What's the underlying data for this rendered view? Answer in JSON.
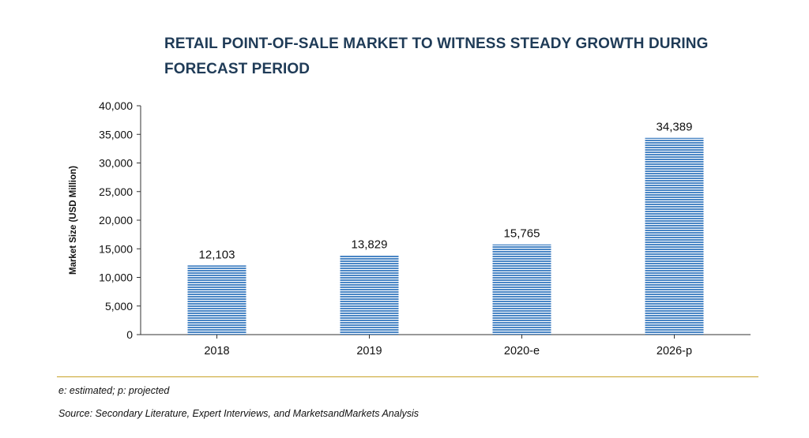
{
  "title_lines": [
    "RETAIL POINT-OF-SALE MARKET TO WITNESS STEADY GROWTH DURING",
    "FORECAST PERIOD"
  ],
  "notes": {
    "abbrev": "e: estimated; p: projected",
    "source": "Source: Secondary Literature, Expert Interviews, and MarketsandMarkets Analysis"
  },
  "colors": {
    "bar": "#4a86c5",
    "bar_stripe": "#ffffff",
    "title": "#1f3b57",
    "rule": "#c9a227"
  },
  "chart_data": {
    "type": "bar",
    "title": "RETAIL POINT-OF-SALE MARKET TO WITNESS STEADY GROWTH DURING FORECAST PERIOD",
    "xlabel": "",
    "ylabel": "Market Size (USD Million)",
    "categories": [
      "2018",
      "2019",
      "2020-e",
      "2026-p"
    ],
    "values": [
      12103,
      13829,
      15765,
      34389
    ],
    "value_labels": [
      "12,103",
      "13,829",
      "15,765",
      "34,389"
    ],
    "ylim": [
      0,
      40000
    ],
    "yticks": [
      0,
      5000,
      10000,
      15000,
      20000,
      25000,
      30000,
      35000,
      40000
    ],
    "ytick_labels": [
      "0",
      "5,000",
      "10,000",
      "15,000",
      "20,000",
      "25,000",
      "30,000",
      "35,000",
      "40,000"
    ],
    "grid": false,
    "legend": "none"
  }
}
